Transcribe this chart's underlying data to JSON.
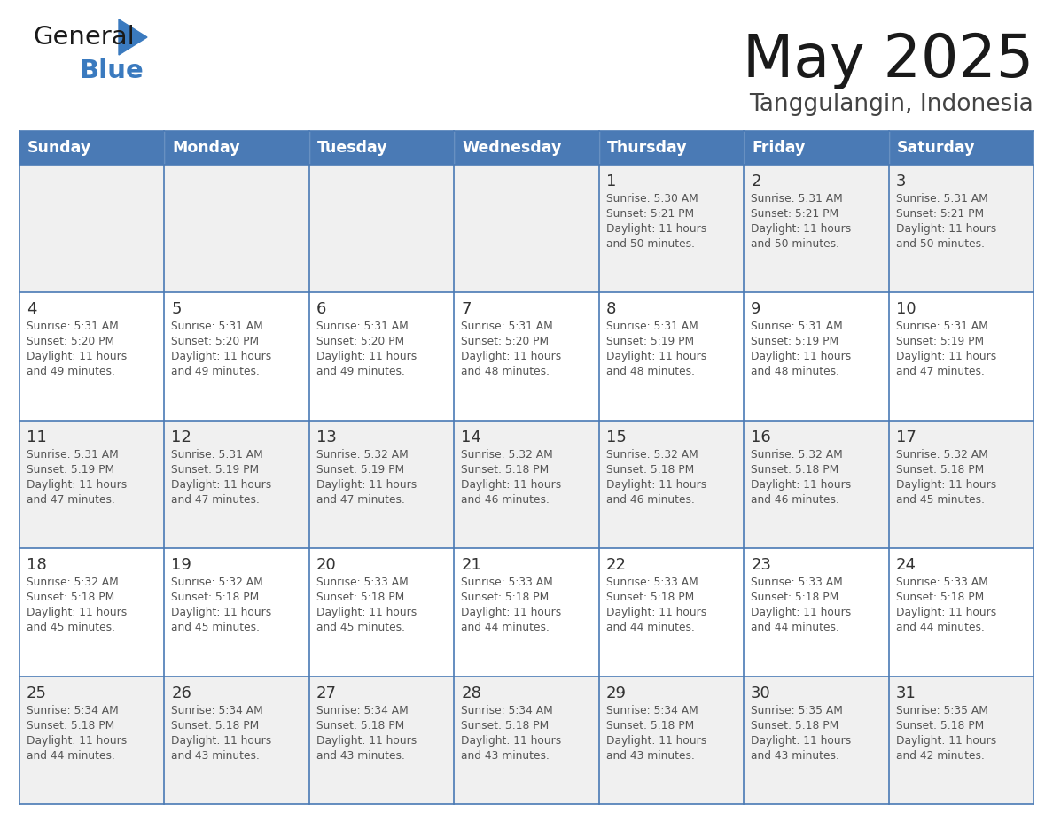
{
  "title": "May 2025",
  "subtitle": "Tanggulangin, Indonesia",
  "header_color": "#4a7ab5",
  "header_text_color": "#FFFFFF",
  "cell_bg_odd": "#f0f0f0",
  "cell_bg_even": "#ffffff",
  "border_color": "#4a7ab5",
  "text_color": "#555555",
  "day_number_color": "#333333",
  "weekdays": [
    "Sunday",
    "Monday",
    "Tuesday",
    "Wednesday",
    "Thursday",
    "Friday",
    "Saturday"
  ],
  "logo_general_color": "#1a1a1a",
  "logo_blue_color": "#3a7abf",
  "logo_triangle_color": "#3a7abf",
  "calendar_data": [
    [
      {
        "day": null
      },
      {
        "day": null
      },
      {
        "day": null
      },
      {
        "day": null
      },
      {
        "day": 1,
        "sunrise": "5:30 AM",
        "sunset": "5:21 PM",
        "daylight_hours": 11,
        "daylight_minutes": 50
      },
      {
        "day": 2,
        "sunrise": "5:31 AM",
        "sunset": "5:21 PM",
        "daylight_hours": 11,
        "daylight_minutes": 50
      },
      {
        "day": 3,
        "sunrise": "5:31 AM",
        "sunset": "5:21 PM",
        "daylight_hours": 11,
        "daylight_minutes": 50
      }
    ],
    [
      {
        "day": 4,
        "sunrise": "5:31 AM",
        "sunset": "5:20 PM",
        "daylight_hours": 11,
        "daylight_minutes": 49
      },
      {
        "day": 5,
        "sunrise": "5:31 AM",
        "sunset": "5:20 PM",
        "daylight_hours": 11,
        "daylight_minutes": 49
      },
      {
        "day": 6,
        "sunrise": "5:31 AM",
        "sunset": "5:20 PM",
        "daylight_hours": 11,
        "daylight_minutes": 49
      },
      {
        "day": 7,
        "sunrise": "5:31 AM",
        "sunset": "5:20 PM",
        "daylight_hours": 11,
        "daylight_minutes": 48
      },
      {
        "day": 8,
        "sunrise": "5:31 AM",
        "sunset": "5:19 PM",
        "daylight_hours": 11,
        "daylight_minutes": 48
      },
      {
        "day": 9,
        "sunrise": "5:31 AM",
        "sunset": "5:19 PM",
        "daylight_hours": 11,
        "daylight_minutes": 48
      },
      {
        "day": 10,
        "sunrise": "5:31 AM",
        "sunset": "5:19 PM",
        "daylight_hours": 11,
        "daylight_minutes": 47
      }
    ],
    [
      {
        "day": 11,
        "sunrise": "5:31 AM",
        "sunset": "5:19 PM",
        "daylight_hours": 11,
        "daylight_minutes": 47
      },
      {
        "day": 12,
        "sunrise": "5:31 AM",
        "sunset": "5:19 PM",
        "daylight_hours": 11,
        "daylight_minutes": 47
      },
      {
        "day": 13,
        "sunrise": "5:32 AM",
        "sunset": "5:19 PM",
        "daylight_hours": 11,
        "daylight_minutes": 47
      },
      {
        "day": 14,
        "sunrise": "5:32 AM",
        "sunset": "5:18 PM",
        "daylight_hours": 11,
        "daylight_minutes": 46
      },
      {
        "day": 15,
        "sunrise": "5:32 AM",
        "sunset": "5:18 PM",
        "daylight_hours": 11,
        "daylight_minutes": 46
      },
      {
        "day": 16,
        "sunrise": "5:32 AM",
        "sunset": "5:18 PM",
        "daylight_hours": 11,
        "daylight_minutes": 46
      },
      {
        "day": 17,
        "sunrise": "5:32 AM",
        "sunset": "5:18 PM",
        "daylight_hours": 11,
        "daylight_minutes": 45
      }
    ],
    [
      {
        "day": 18,
        "sunrise": "5:32 AM",
        "sunset": "5:18 PM",
        "daylight_hours": 11,
        "daylight_minutes": 45
      },
      {
        "day": 19,
        "sunrise": "5:32 AM",
        "sunset": "5:18 PM",
        "daylight_hours": 11,
        "daylight_minutes": 45
      },
      {
        "day": 20,
        "sunrise": "5:33 AM",
        "sunset": "5:18 PM",
        "daylight_hours": 11,
        "daylight_minutes": 45
      },
      {
        "day": 21,
        "sunrise": "5:33 AM",
        "sunset": "5:18 PM",
        "daylight_hours": 11,
        "daylight_minutes": 44
      },
      {
        "day": 22,
        "sunrise": "5:33 AM",
        "sunset": "5:18 PM",
        "daylight_hours": 11,
        "daylight_minutes": 44
      },
      {
        "day": 23,
        "sunrise": "5:33 AM",
        "sunset": "5:18 PM",
        "daylight_hours": 11,
        "daylight_minutes": 44
      },
      {
        "day": 24,
        "sunrise": "5:33 AM",
        "sunset": "5:18 PM",
        "daylight_hours": 11,
        "daylight_minutes": 44
      }
    ],
    [
      {
        "day": 25,
        "sunrise": "5:34 AM",
        "sunset": "5:18 PM",
        "daylight_hours": 11,
        "daylight_minutes": 44
      },
      {
        "day": 26,
        "sunrise": "5:34 AM",
        "sunset": "5:18 PM",
        "daylight_hours": 11,
        "daylight_minutes": 43
      },
      {
        "day": 27,
        "sunrise": "5:34 AM",
        "sunset": "5:18 PM",
        "daylight_hours": 11,
        "daylight_minutes": 43
      },
      {
        "day": 28,
        "sunrise": "5:34 AM",
        "sunset": "5:18 PM",
        "daylight_hours": 11,
        "daylight_minutes": 43
      },
      {
        "day": 29,
        "sunrise": "5:34 AM",
        "sunset": "5:18 PM",
        "daylight_hours": 11,
        "daylight_minutes": 43
      },
      {
        "day": 30,
        "sunrise": "5:35 AM",
        "sunset": "5:18 PM",
        "daylight_hours": 11,
        "daylight_minutes": 43
      },
      {
        "day": 31,
        "sunrise": "5:35 AM",
        "sunset": "5:18 PM",
        "daylight_hours": 11,
        "daylight_minutes": 42
      }
    ]
  ]
}
